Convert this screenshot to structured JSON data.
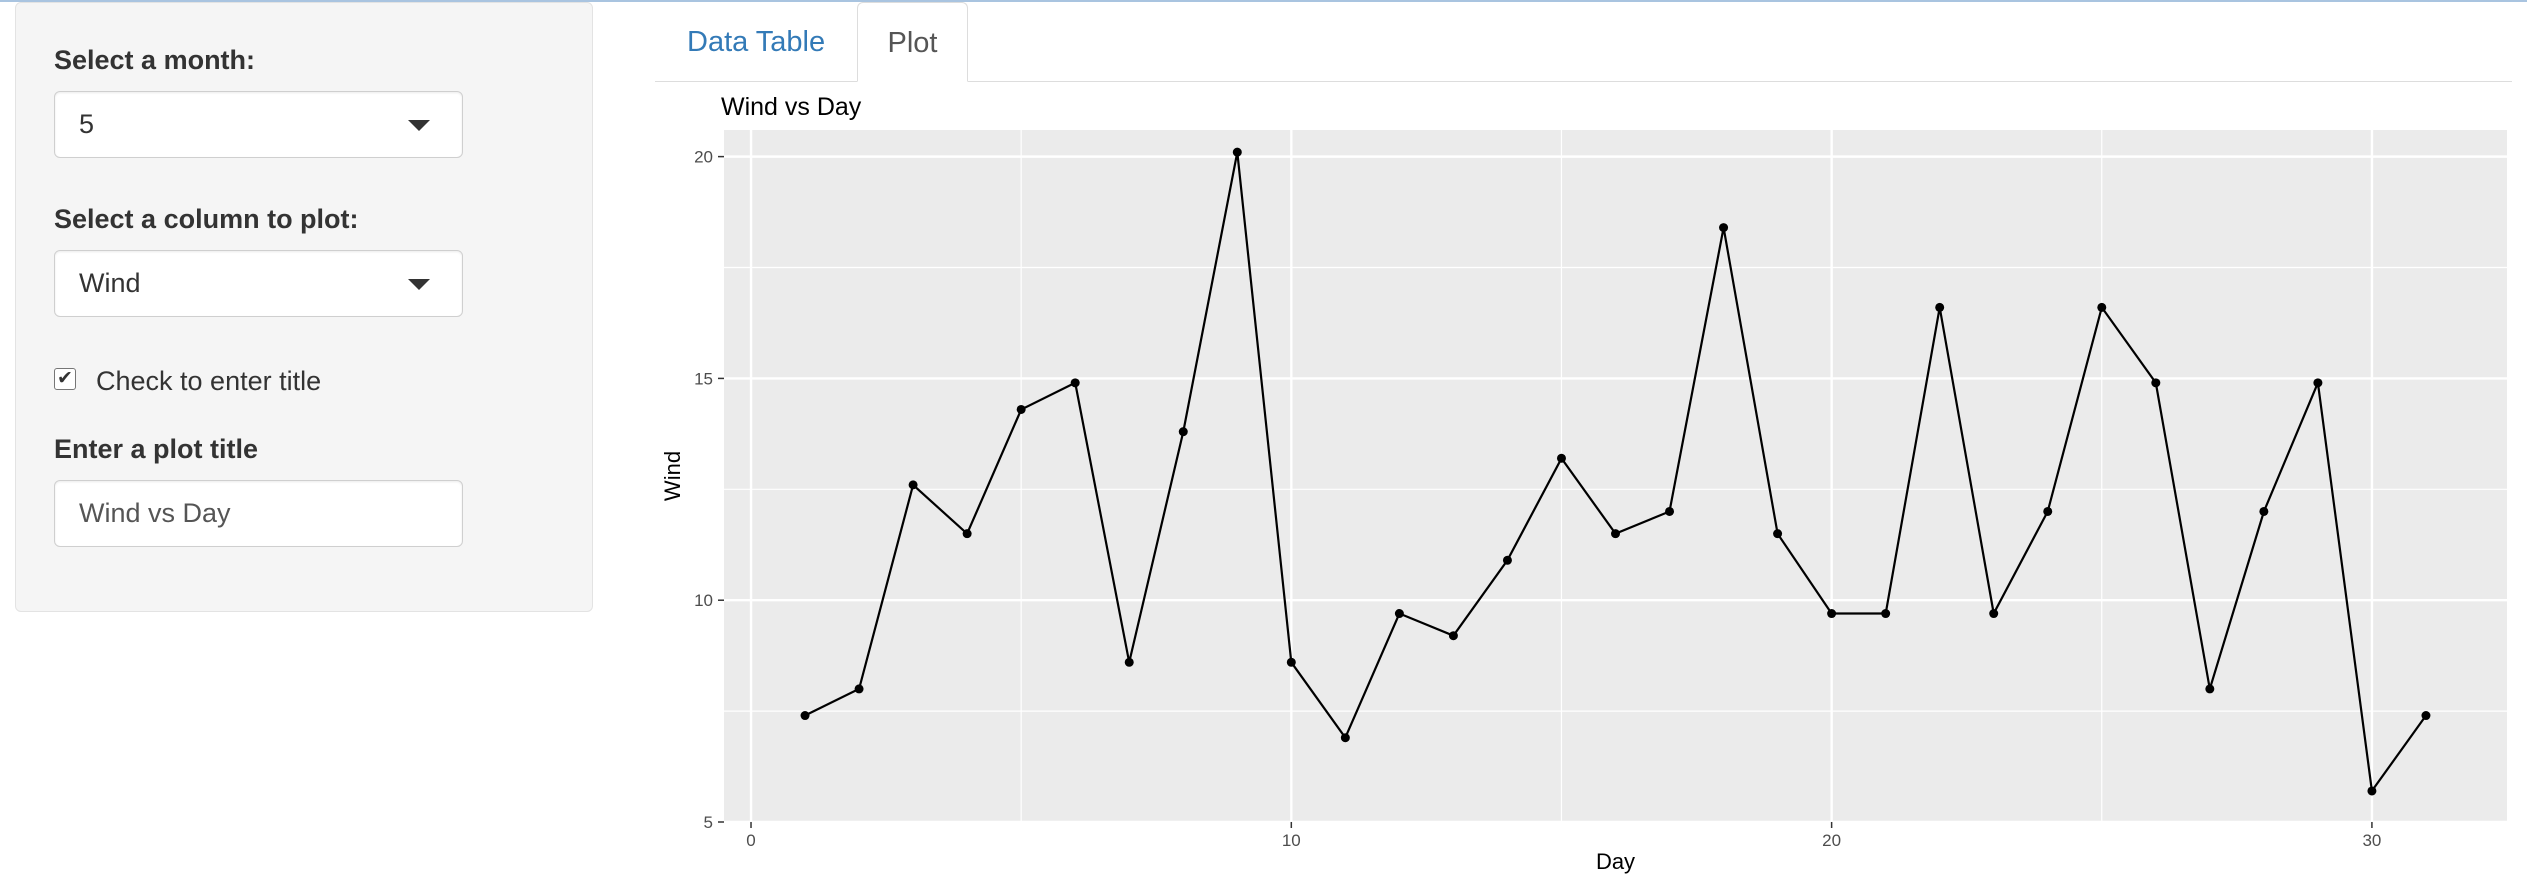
{
  "sidebar": {
    "month_label": "Select a month:",
    "month_value": "5",
    "column_label": "Select a column to plot:",
    "column_value": "Wind",
    "checkbox_label": "Check to enter title",
    "checkbox_checked": true,
    "title_label": "Enter a plot title",
    "title_value": "Wind vs Day"
  },
  "tabs": [
    {
      "label": "Data Table",
      "active": false
    },
    {
      "label": "Plot",
      "active": true
    }
  ],
  "chart_data": {
    "type": "line",
    "title": "Wind vs Day",
    "xlabel": "Day",
    "ylabel": "Wind",
    "x": [
      1,
      2,
      3,
      4,
      5,
      6,
      7,
      8,
      9,
      10,
      11,
      12,
      13,
      14,
      15,
      16,
      17,
      18,
      19,
      20,
      21,
      22,
      23,
      24,
      25,
      26,
      27,
      28,
      29,
      30,
      31
    ],
    "y": [
      7.4,
      8.0,
      12.6,
      11.5,
      14.3,
      14.9,
      8.6,
      13.8,
      20.1,
      8.6,
      6.9,
      9.7,
      9.2,
      10.9,
      13.2,
      11.5,
      12.0,
      18.4,
      11.5,
      9.7,
      9.7,
      16.6,
      9.7,
      12.0,
      16.6,
      14.9,
      8.0,
      12.0,
      14.9,
      5.7,
      7.4
    ],
    "xlim": [
      -0.5,
      32.5
    ],
    "ylim": [
      5,
      20.6
    ],
    "x_ticks": [
      0,
      10,
      20,
      30
    ],
    "y_ticks": [
      5,
      10,
      15,
      20
    ],
    "grid": true,
    "markers": true,
    "colors": {
      "panel": "#ebebeb",
      "grid": "#ffffff",
      "line": "#000000"
    }
  }
}
